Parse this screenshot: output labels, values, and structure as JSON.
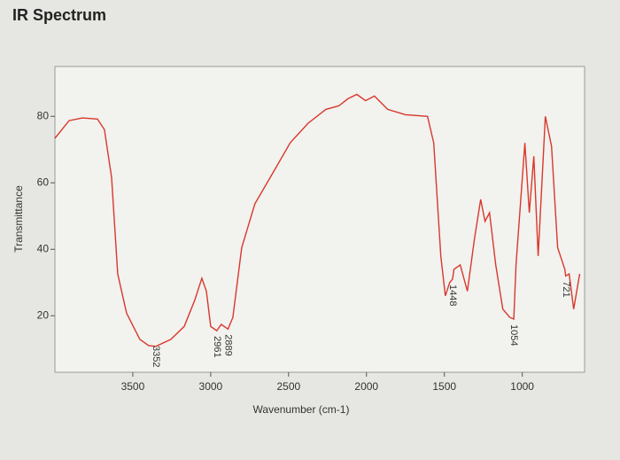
{
  "chart_data": {
    "type": "line",
    "title": "IR Spectrum",
    "xlabel": "Wavenumber (cm-1)",
    "ylabel": "Transmittance",
    "xlim": [
      4000,
      600
    ],
    "ylim": [
      3,
      95
    ],
    "xticks": [
      3500,
      3000,
      2500,
      2000,
      1500,
      1000
    ],
    "yticks": [
      20,
      40,
      60,
      80
    ],
    "grid": false,
    "series": [
      {
        "name": "Transmittance",
        "color": "#d8382c",
        "x": [
          4000,
          3909,
          3824,
          3727,
          3682,
          3636,
          3597,
          3540,
          3455,
          3398,
          3352,
          3256,
          3170,
          3102,
          3057,
          3028,
          3000,
          2961,
          2932,
          2889,
          2858,
          2801,
          2716,
          2602,
          2489,
          2375,
          2261,
          2176,
          2119,
          2062,
          2006,
          1949,
          1864,
          1750,
          1608,
          1568,
          1523,
          1494,
          1466,
          1448,
          1438,
          1398,
          1352,
          1307,
          1267,
          1239,
          1210,
          1170,
          1125,
          1080,
          1054,
          1040,
          983,
          955,
          926,
          898,
          852,
          812,
          773,
          727,
          721,
          699,
          670,
          631
        ],
        "values": [
          73.4,
          78.7,
          79.5,
          79.2,
          76,
          61.6,
          32.6,
          20.8,
          12.9,
          11,
          10.8,
          12.9,
          16.8,
          24.7,
          31.3,
          27.4,
          16.8,
          15.5,
          17.4,
          16,
          19.5,
          40.5,
          53.7,
          62.9,
          72.1,
          77.9,
          82.1,
          83.2,
          85.3,
          86.6,
          84.7,
          86.1,
          82.1,
          80.5,
          80,
          72,
          37.9,
          26,
          30,
          31,
          34,
          35.3,
          27.4,
          43.2,
          55,
          48.4,
          51,
          35.3,
          22,
          19.5,
          19,
          35.3,
          72,
          51,
          68,
          38,
          80,
          71,
          40.5,
          34,
          32,
          32.6,
          22,
          32.6
        ]
      }
    ],
    "peak_labels": [
      3352,
      2961,
      2889,
      1448,
      1054,
      721
    ]
  }
}
